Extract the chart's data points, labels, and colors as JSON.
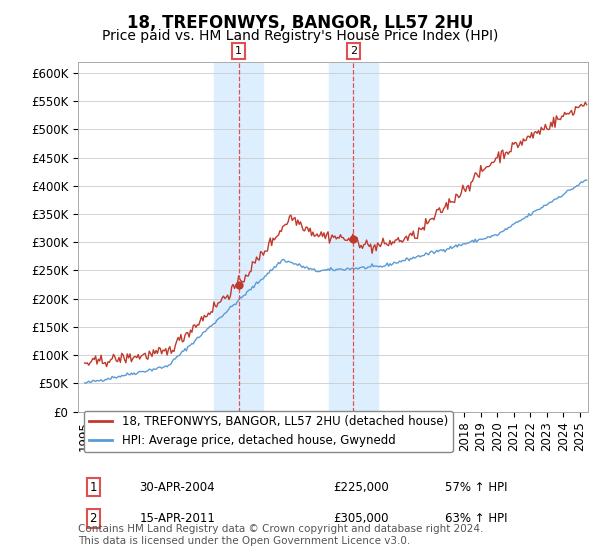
{
  "title": "18, TREFONWYS, BANGOR, LL57 2HU",
  "subtitle": "Price paid vs. HM Land Registry's House Price Index (HPI)",
  "ylim": [
    0,
    620000
  ],
  "yticks": [
    0,
    50000,
    100000,
    150000,
    200000,
    250000,
    300000,
    350000,
    400000,
    450000,
    500000,
    550000,
    600000
  ],
  "ytick_labels": [
    "£0",
    "£50K",
    "£100K",
    "£150K",
    "£200K",
    "£250K",
    "£300K",
    "£350K",
    "£400K",
    "£450K",
    "£500K",
    "£550K",
    "£600K"
  ],
  "sale1_date_num": 2004.33,
  "sale1_price": 225000,
  "sale1_label": "30-APR-2004",
  "sale1_pct": "57%",
  "sale2_date_num": 2011.29,
  "sale2_price": 305000,
  "sale2_label": "15-APR-2011",
  "sale2_pct": "63%",
  "red_line_color": "#c0392b",
  "blue_line_color": "#5b9bd5",
  "shade_color": "#ddeeff",
  "vline_color": "#e05050",
  "background_color": "#ffffff",
  "legend_label_red": "18, TREFONWYS, BANGOR, LL57 2HU (detached house)",
  "legend_label_blue": "HPI: Average price, detached house, Gwynedd",
  "footnote1": "Contains HM Land Registry data © Crown copyright and database right 2024.",
  "footnote2": "This data is licensed under the Open Government Licence v3.0.",
  "title_fontsize": 12,
  "subtitle_fontsize": 10,
  "tick_fontsize": 8.5,
  "legend_fontsize": 8.5,
  "annot_fontsize": 8.5
}
